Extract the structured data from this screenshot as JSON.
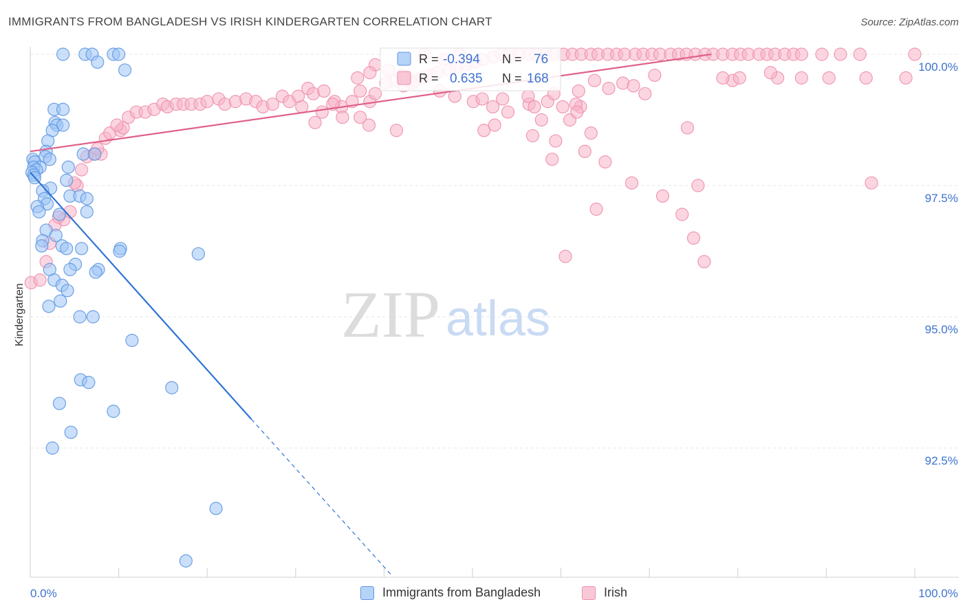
{
  "title": "IMMIGRANTS FROM BANGLADESH VS IRISH KINDERGARTEN CORRELATION CHART",
  "source": "Source: ZipAtlas.com",
  "watermark": {
    "zip": "ZIP",
    "atlas": "atlas"
  },
  "colors": {
    "blue_fill": "#9ec4f5",
    "blue_stroke": "#5e97e0",
    "blue_line": "#2f74d3",
    "pink_fill": "#f7b5c9",
    "pink_stroke": "#ee8fac",
    "pink_line": "#e0608a",
    "value_text": "#3d72d0",
    "grid": "#e4e4e4",
    "axis_text": "#3d72d0"
  },
  "legend_box": [
    {
      "r_label": "R =",
      "r_value": "-0.394",
      "n_label": "N =",
      "n_value": "76",
      "series": "blue"
    },
    {
      "r_label": "R =",
      "r_value": "0.635",
      "n_label": "N =",
      "n_value": "168",
      "series": "pink"
    }
  ],
  "legend_bottom": [
    {
      "label": "Immigrants from Bangladesh",
      "series": "blue"
    },
    {
      "label": "Irish",
      "series": "pink"
    }
  ],
  "chart_data": {
    "type": "scatter",
    "title": "IMMIGRANTS FROM BANGLADESH VS IRISH KINDERGARTEN CORRELATION CHART",
    "xlabel": "",
    "ylabel": "Kindergarten",
    "xlim": [
      0,
      100
    ],
    "ylim": [
      90.0,
      100.3
    ],
    "x_tick_labels": [
      {
        "value": 0,
        "label": "0.0%"
      },
      {
        "value": 100,
        "label": "100.0%"
      }
    ],
    "y_ticks": [
      {
        "value": 100,
        "label": "100.0%"
      },
      {
        "value": 97.5,
        "label": "97.5%"
      },
      {
        "value": 95,
        "label": "95.0%"
      },
      {
        "value": 92.5,
        "label": "92.5%"
      }
    ],
    "x_minor_ticks": [
      0,
      10,
      20,
      30,
      40,
      50,
      60,
      70,
      80,
      90,
      100
    ],
    "grid": true,
    "series": [
      {
        "name": "Immigrants from Bangladesh",
        "color": "blue",
        "R": -0.394,
        "N": 76,
        "trend": {
          "solid": [
            [
              0,
              97.75
            ],
            [
              25,
              93.05
            ]
          ],
          "dashed": [
            [
              25,
              93.05
            ],
            [
              41,
              90.05
            ]
          ]
        },
        "points": [
          [
            3.7,
            100.0
          ],
          [
            6.2,
            100.0
          ],
          [
            7.0,
            100.0
          ],
          [
            9.4,
            100.0
          ],
          [
            10.0,
            100.0
          ],
          [
            7.6,
            99.85
          ],
          [
            10.7,
            99.7
          ],
          [
            2.7,
            98.95
          ],
          [
            3.7,
            98.95
          ],
          [
            2.8,
            98.7
          ],
          [
            3.0,
            98.65
          ],
          [
            3.7,
            98.65
          ],
          [
            2.5,
            98.55
          ],
          [
            2.0,
            98.35
          ],
          [
            1.8,
            98.15
          ],
          [
            6.0,
            98.1
          ],
          [
            7.3,
            98.1
          ],
          [
            1.7,
            98.05
          ],
          [
            2.2,
            98.0
          ],
          [
            0.3,
            98.0
          ],
          [
            0.5,
            97.95
          ],
          [
            1.1,
            97.85
          ],
          [
            0.4,
            97.85
          ],
          [
            4.3,
            97.85
          ],
          [
            0.7,
            97.8
          ],
          [
            0.2,
            97.75
          ],
          [
            0.4,
            97.7
          ],
          [
            0.5,
            97.65
          ],
          [
            4.1,
            97.6
          ],
          [
            2.3,
            97.45
          ],
          [
            1.4,
            97.4
          ],
          [
            1.6,
            97.25
          ],
          [
            4.5,
            97.3
          ],
          [
            5.6,
            97.3
          ],
          [
            6.4,
            97.25
          ],
          [
            1.9,
            97.15
          ],
          [
            0.8,
            97.1
          ],
          [
            1.0,
            97.0
          ],
          [
            6.4,
            97.0
          ],
          [
            3.3,
            96.95
          ],
          [
            1.8,
            96.65
          ],
          [
            2.9,
            96.55
          ],
          [
            1.4,
            96.45
          ],
          [
            1.3,
            96.35
          ],
          [
            3.6,
            96.35
          ],
          [
            4.1,
            96.3
          ],
          [
            5.8,
            96.3
          ],
          [
            10.2,
            96.3
          ],
          [
            10.1,
            96.25
          ],
          [
            19.0,
            96.2
          ],
          [
            5.1,
            96.0
          ],
          [
            2.2,
            95.9
          ],
          [
            4.5,
            95.9
          ],
          [
            7.7,
            95.9
          ],
          [
            7.4,
            95.85
          ],
          [
            2.7,
            95.7
          ],
          [
            3.6,
            95.6
          ],
          [
            4.2,
            95.5
          ],
          [
            3.4,
            95.3
          ],
          [
            2.1,
            95.2
          ],
          [
            5.6,
            95.0
          ],
          [
            7.1,
            95.0
          ],
          [
            11.5,
            94.55
          ],
          [
            5.7,
            93.8
          ],
          [
            6.6,
            93.75
          ],
          [
            16.0,
            93.65
          ],
          [
            3.3,
            93.35
          ],
          [
            9.4,
            93.2
          ],
          [
            4.6,
            92.8
          ],
          [
            2.5,
            92.5
          ],
          [
            21.0,
            91.35
          ],
          [
            17.6,
            90.35
          ]
        ]
      },
      {
        "name": "Irish",
        "color": "pink",
        "R": 0.635,
        "N": 168,
        "trend": {
          "solid": [
            [
              0,
              98.15
            ],
            [
              77,
              100.0
            ]
          ]
        },
        "points": [
          [
            0.1,
            95.65
          ],
          [
            1.1,
            95.7
          ],
          [
            1.8,
            96.05
          ],
          [
            2.2,
            96.4
          ],
          [
            2.8,
            96.75
          ],
          [
            3.8,
            96.85
          ],
          [
            3.2,
            96.9
          ],
          [
            4.5,
            97.0
          ],
          [
            5.3,
            97.5
          ],
          [
            5.0,
            97.55
          ],
          [
            5.8,
            97.8
          ],
          [
            7.2,
            98.1
          ],
          [
            8.0,
            98.1
          ],
          [
            6.4,
            98.05
          ],
          [
            7.6,
            98.2
          ],
          [
            8.5,
            98.4
          ],
          [
            9.0,
            98.5
          ],
          [
            10.2,
            98.55
          ],
          [
            10.5,
            98.6
          ],
          [
            11.1,
            98.8
          ],
          [
            9.8,
            98.65
          ],
          [
            12.0,
            98.9
          ],
          [
            13.0,
            98.9
          ],
          [
            14.0,
            98.95
          ],
          [
            15.0,
            99.05
          ],
          [
            15.5,
            99.0
          ],
          [
            16.5,
            99.05
          ],
          [
            17.3,
            99.05
          ],
          [
            18.2,
            99.05
          ],
          [
            19.2,
            99.05
          ],
          [
            20.0,
            99.1
          ],
          [
            21.3,
            99.15
          ],
          [
            22.0,
            99.05
          ],
          [
            23.2,
            99.1
          ],
          [
            24.4,
            99.15
          ],
          [
            25.5,
            99.1
          ],
          [
            26.3,
            99.0
          ],
          [
            27.4,
            99.05
          ],
          [
            28.5,
            99.2
          ],
          [
            29.3,
            99.1
          ],
          [
            30.3,
            99.2
          ],
          [
            31.4,
            99.35
          ],
          [
            32.0,
            99.25
          ],
          [
            33.2,
            99.3
          ],
          [
            34.4,
            99.1
          ],
          [
            35.2,
            99.0
          ],
          [
            36.4,
            99.1
          ],
          [
            37.3,
            99.3
          ],
          [
            38.4,
            99.1
          ],
          [
            39.0,
            99.25
          ],
          [
            40.2,
            99.45
          ],
          [
            41.3,
            99.5
          ],
          [
            42.2,
            99.4
          ],
          [
            43.4,
            99.5
          ],
          [
            44.3,
            99.55
          ],
          [
            45.2,
            99.6
          ],
          [
            46.0,
            99.65
          ],
          [
            47.4,
            99.7
          ],
          [
            48.2,
            99.75
          ],
          [
            49.3,
            99.8
          ],
          [
            50.3,
            99.85
          ],
          [
            51.2,
            99.9
          ],
          [
            52.4,
            99.95
          ],
          [
            53.3,
            100.0
          ],
          [
            54.2,
            100.0
          ],
          [
            55.3,
            100.0
          ],
          [
            56.4,
            100.0
          ],
          [
            57.2,
            100.0
          ],
          [
            58.3,
            100.0
          ],
          [
            59.2,
            100.0
          ],
          [
            60.3,
            100.0
          ],
          [
            61.3,
            100.0
          ],
          [
            62.3,
            100.0
          ],
          [
            63.4,
            100.0
          ],
          [
            64.2,
            100.0
          ],
          [
            65.3,
            100.0
          ],
          [
            66.3,
            100.0
          ],
          [
            67.2,
            100.0
          ],
          [
            68.4,
            100.0
          ],
          [
            69.3,
            100.0
          ],
          [
            70.3,
            100.0
          ],
          [
            71.2,
            100.0
          ],
          [
            72.4,
            100.0
          ],
          [
            73.3,
            100.0
          ],
          [
            74.2,
            100.0
          ],
          [
            75.2,
            100.0
          ],
          [
            76.3,
            100.0
          ],
          [
            77.2,
            100.0
          ],
          [
            78.3,
            100.0
          ],
          [
            79.4,
            100.0
          ],
          [
            80.3,
            100.0
          ],
          [
            81.2,
            100.0
          ],
          [
            82.4,
            100.0
          ],
          [
            83.3,
            100.0
          ],
          [
            84.2,
            100.0
          ],
          [
            85.3,
            100.0
          ],
          [
            86.3,
            100.0
          ],
          [
            87.2,
            100.0
          ],
          [
            89.5,
            100.0
          ],
          [
            91.6,
            100.0
          ],
          [
            93.8,
            100.0
          ],
          [
            100.0,
            100.0
          ],
          [
            48.5,
            100.0
          ],
          [
            44.6,
            100.0
          ],
          [
            46.8,
            99.9
          ],
          [
            39.0,
            99.8
          ],
          [
            40.5,
            99.7
          ],
          [
            38.4,
            99.65
          ],
          [
            37.0,
            99.55
          ],
          [
            42.0,
            99.6
          ],
          [
            43.2,
            99.45
          ],
          [
            46.3,
            99.3
          ],
          [
            48.0,
            99.2
          ],
          [
            50.1,
            99.1
          ],
          [
            52.3,
            99.0
          ],
          [
            56.4,
            99.05
          ],
          [
            63.8,
            99.5
          ],
          [
            67.0,
            99.45
          ],
          [
            70.6,
            99.6
          ],
          [
            79.4,
            99.5
          ],
          [
            80.2,
            99.55
          ],
          [
            84.5,
            99.55
          ],
          [
            87.2,
            99.55
          ],
          [
            90.3,
            99.55
          ],
          [
            94.5,
            99.55
          ],
          [
            99.0,
            99.55
          ],
          [
            83.7,
            99.65
          ],
          [
            69.5,
            99.25
          ],
          [
            51.1,
            99.15
          ],
          [
            53.4,
            99.15
          ],
          [
            56.3,
            99.2
          ],
          [
            58.5,
            99.1
          ],
          [
            60.2,
            99.0
          ],
          [
            62.2,
            99.0
          ],
          [
            34.2,
            99.05
          ],
          [
            30.7,
            99.0
          ],
          [
            33.0,
            98.9
          ],
          [
            37.3,
            98.8
          ],
          [
            35.3,
            98.8
          ],
          [
            32.2,
            98.7
          ],
          [
            38.3,
            98.65
          ],
          [
            41.4,
            98.55
          ],
          [
            51.3,
            98.55
          ],
          [
            52.5,
            98.65
          ],
          [
            56.8,
            98.45
          ],
          [
            59.4,
            98.35
          ],
          [
            62.7,
            98.15
          ],
          [
            65.0,
            97.95
          ],
          [
            68.0,
            97.55
          ],
          [
            71.5,
            97.3
          ],
          [
            73.7,
            96.95
          ],
          [
            75.0,
            96.5
          ],
          [
            76.2,
            96.05
          ],
          [
            57.0,
            99.0
          ],
          [
            54.0,
            98.9
          ],
          [
            59.2,
            99.25
          ],
          [
            62.0,
            99.3
          ],
          [
            65.4,
            99.35
          ],
          [
            68.2,
            99.4
          ],
          [
            78.3,
            99.55
          ],
          [
            57.8,
            98.75
          ],
          [
            63.4,
            98.5
          ],
          [
            74.3,
            98.6
          ],
          [
            75.5,
            97.5
          ],
          [
            95.1,
            97.55
          ],
          [
            60.5,
            96.15
          ],
          [
            61.0,
            98.75
          ],
          [
            61.7,
            99.05
          ],
          [
            64.0,
            97.05
          ],
          [
            59.0,
            98.0
          ],
          [
            61.8,
            98.9
          ]
        ]
      }
    ]
  }
}
